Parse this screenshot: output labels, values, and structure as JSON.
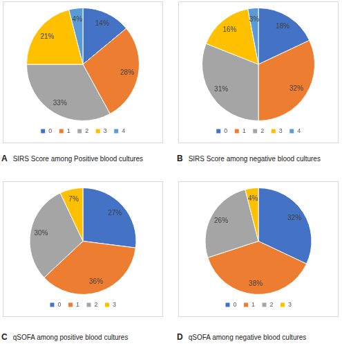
{
  "chart_data": [
    {
      "type": "pie",
      "panel": "A",
      "title": "SIRS Score among Positive blood cultures",
      "categories": [
        "0",
        "1",
        "2",
        "3",
        "4"
      ],
      "values": [
        14,
        28,
        33,
        21,
        4
      ],
      "value_labels": [
        "14%",
        "28%",
        "33%",
        "21%",
        "4%"
      ],
      "colors": [
        "#4472c4",
        "#ed7d31",
        "#a5a5a5",
        "#ffc000",
        "#5b9bd5"
      ],
      "data_labels": true,
      "legend": "bottom"
    },
    {
      "type": "pie",
      "panel": "B",
      "title": "SIRS Score among negative blood cultures",
      "categories": [
        "0",
        "1",
        "2",
        "3",
        "4"
      ],
      "values": [
        18,
        32,
        31,
        16,
        3
      ],
      "value_labels": [
        "18%",
        "32%",
        "31%",
        "16%",
        "3%"
      ],
      "colors": [
        "#4472c4",
        "#ed7d31",
        "#a5a5a5",
        "#ffc000",
        "#5b9bd5"
      ],
      "data_labels": true,
      "legend": "bottom"
    },
    {
      "type": "pie",
      "panel": "C",
      "title": "qSOFA among positive blood cultures",
      "categories": [
        "0",
        "1",
        "2",
        "3"
      ],
      "values": [
        27,
        36,
        30,
        7
      ],
      "value_labels": [
        "27%",
        "36%",
        "30%",
        "7%"
      ],
      "colors": [
        "#4472c4",
        "#ed7d31",
        "#a5a5a5",
        "#ffc000"
      ],
      "data_labels": true,
      "legend": "bottom"
    },
    {
      "type": "pie",
      "panel": "D",
      "title": "qSOFA among negative blood cultures",
      "categories": [
        "0",
        "1",
        "2",
        "3"
      ],
      "values": [
        32,
        38,
        26,
        4
      ],
      "value_labels": [
        "32%",
        "38%",
        "26%",
        "4%"
      ],
      "colors": [
        "#4472c4",
        "#ed7d31",
        "#a5a5a5",
        "#ffc000"
      ],
      "data_labels": true,
      "legend": "bottom"
    }
  ]
}
